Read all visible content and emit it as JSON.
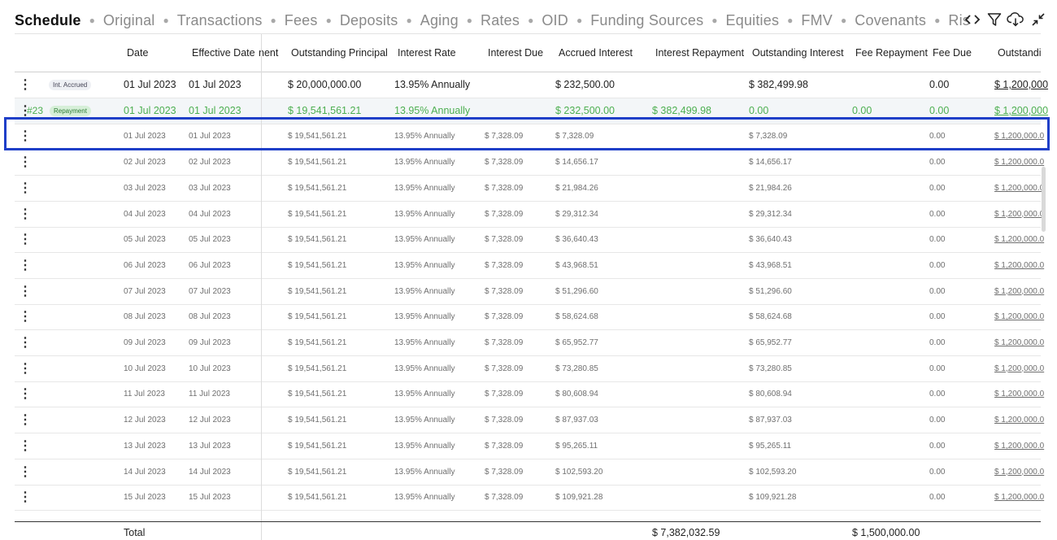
{
  "tabs": [
    "Schedule",
    "Original",
    "Transactions",
    "Fees",
    "Deposits",
    "Aging",
    "Rates",
    "OID",
    "Funding Sources",
    "Equities",
    "FMV",
    "Covenants",
    "Ris"
  ],
  "toolbar": {
    "code_icon": "code-icon",
    "filter_icon": "filter-icon",
    "download_icon": "cloud-download-icon",
    "collapse_icon": "collapse-icon"
  },
  "headers": {
    "date": "Date",
    "effective_date": "Effective Date",
    "repayment_cut": "nent",
    "outstanding_principal": "Outstanding Principal",
    "interest_rate": "Interest Rate",
    "interest_due": "Interest Due",
    "accrued_interest": "Accrued Interest",
    "interest_repayment": "Interest Repayment",
    "outstanding_interest": "Outstanding Interest",
    "fee_repayment": "Fee Repayment",
    "fee_due": "Fee Due",
    "outstanding_fee": "Outstandi"
  },
  "rows": [
    {
      "type": "accrued",
      "badge": "Int. Accrued",
      "id": "",
      "date": "01 Jul 2023",
      "eff": "01 Jul 2023",
      "principal": "$ 20,000,000.00",
      "rate": "13.95% Annually",
      "due": "",
      "accrued": "$ 232,500.00",
      "int_repay": "",
      "out_int": "$ 382,499.98",
      "fee_repay": "",
      "fee_due": "0.00",
      "out_fee": "$ 1,200,000"
    },
    {
      "type": "repayment",
      "badge": "Repayment",
      "id": "#23",
      "date": "01 Jul 2023",
      "eff": "01 Jul 2023",
      "principal": "$ 19,541,561.21",
      "rate": "13.95% Annually",
      "due": "",
      "accrued": "$ 232,500.00",
      "int_repay": "$ 382,499.98",
      "out_int": "0.00",
      "fee_repay": "0.00",
      "fee_due": "0.00",
      "out_fee": "$ 1,200,000"
    },
    {
      "type": "daily",
      "badge": "",
      "id": "",
      "date": "01 Jul 2023",
      "eff": "01 Jul 2023",
      "principal": "$ 19,541,561.21",
      "rate": "13.95% Annually",
      "due": "$ 7,328.09",
      "accrued": "$ 7,328.09",
      "int_repay": "",
      "out_int": "$ 7,328.09",
      "fee_repay": "",
      "fee_due": "0.00",
      "out_fee": "$ 1,200,000.0"
    },
    {
      "type": "daily",
      "badge": "",
      "id": "",
      "date": "02 Jul 2023",
      "eff": "02 Jul 2023",
      "principal": "$ 19,541,561.21",
      "rate": "13.95% Annually",
      "due": "$ 7,328.09",
      "accrued": "$ 14,656.17",
      "int_repay": "",
      "out_int": "$ 14,656.17",
      "fee_repay": "",
      "fee_due": "0.00",
      "out_fee": "$ 1,200,000.0"
    },
    {
      "type": "daily",
      "badge": "",
      "id": "",
      "date": "03 Jul 2023",
      "eff": "03 Jul 2023",
      "principal": "$ 19,541,561.21",
      "rate": "13.95% Annually",
      "due": "$ 7,328.09",
      "accrued": "$ 21,984.26",
      "int_repay": "",
      "out_int": "$ 21,984.26",
      "fee_repay": "",
      "fee_due": "0.00",
      "out_fee": "$ 1,200,000.0"
    },
    {
      "type": "daily",
      "badge": "",
      "id": "",
      "date": "04 Jul 2023",
      "eff": "04 Jul 2023",
      "principal": "$ 19,541,561.21",
      "rate": "13.95% Annually",
      "due": "$ 7,328.09",
      "accrued": "$ 29,312.34",
      "int_repay": "",
      "out_int": "$ 29,312.34",
      "fee_repay": "",
      "fee_due": "0.00",
      "out_fee": "$ 1,200,000.0"
    },
    {
      "type": "daily",
      "badge": "",
      "id": "",
      "date": "05 Jul 2023",
      "eff": "05 Jul 2023",
      "principal": "$ 19,541,561.21",
      "rate": "13.95% Annually",
      "due": "$ 7,328.09",
      "accrued": "$ 36,640.43",
      "int_repay": "",
      "out_int": "$ 36,640.43",
      "fee_repay": "",
      "fee_due": "0.00",
      "out_fee": "$ 1,200,000.0"
    },
    {
      "type": "daily",
      "badge": "",
      "id": "",
      "date": "06 Jul 2023",
      "eff": "06 Jul 2023",
      "principal": "$ 19,541,561.21",
      "rate": "13.95% Annually",
      "due": "$ 7,328.09",
      "accrued": "$ 43,968.51",
      "int_repay": "",
      "out_int": "$ 43,968.51",
      "fee_repay": "",
      "fee_due": "0.00",
      "out_fee": "$ 1,200,000.0"
    },
    {
      "type": "daily",
      "badge": "",
      "id": "",
      "date": "07 Jul 2023",
      "eff": "07 Jul 2023",
      "principal": "$ 19,541,561.21",
      "rate": "13.95% Annually",
      "due": "$ 7,328.09",
      "accrued": "$ 51,296.60",
      "int_repay": "",
      "out_int": "$ 51,296.60",
      "fee_repay": "",
      "fee_due": "0.00",
      "out_fee": "$ 1,200,000.0"
    },
    {
      "type": "daily",
      "badge": "",
      "id": "",
      "date": "08 Jul 2023",
      "eff": "08 Jul 2023",
      "principal": "$ 19,541,561.21",
      "rate": "13.95% Annually",
      "due": "$ 7,328.09",
      "accrued": "$ 58,624.68",
      "int_repay": "",
      "out_int": "$ 58,624.68",
      "fee_repay": "",
      "fee_due": "0.00",
      "out_fee": "$ 1,200,000.0"
    },
    {
      "type": "daily",
      "badge": "",
      "id": "",
      "date": "09 Jul 2023",
      "eff": "09 Jul 2023",
      "principal": "$ 19,541,561.21",
      "rate": "13.95% Annually",
      "due": "$ 7,328.09",
      "accrued": "$ 65,952.77",
      "int_repay": "",
      "out_int": "$ 65,952.77",
      "fee_repay": "",
      "fee_due": "0.00",
      "out_fee": "$ 1,200,000.0"
    },
    {
      "type": "daily",
      "badge": "",
      "id": "",
      "date": "10 Jul 2023",
      "eff": "10 Jul 2023",
      "principal": "$ 19,541,561.21",
      "rate": "13.95% Annually",
      "due": "$ 7,328.09",
      "accrued": "$ 73,280.85",
      "int_repay": "",
      "out_int": "$ 73,280.85",
      "fee_repay": "",
      "fee_due": "0.00",
      "out_fee": "$ 1,200,000.0"
    },
    {
      "type": "daily",
      "badge": "",
      "id": "",
      "date": "11 Jul 2023",
      "eff": "11 Jul 2023",
      "principal": "$ 19,541,561.21",
      "rate": "13.95% Annually",
      "due": "$ 7,328.09",
      "accrued": "$ 80,608.94",
      "int_repay": "",
      "out_int": "$ 80,608.94",
      "fee_repay": "",
      "fee_due": "0.00",
      "out_fee": "$ 1,200,000.0"
    },
    {
      "type": "daily",
      "badge": "",
      "id": "",
      "date": "12 Jul 2023",
      "eff": "12 Jul 2023",
      "principal": "$ 19,541,561.21",
      "rate": "13.95% Annually",
      "due": "$ 7,328.09",
      "accrued": "$ 87,937.03",
      "int_repay": "",
      "out_int": "$ 87,937.03",
      "fee_repay": "",
      "fee_due": "0.00",
      "out_fee": "$ 1,200,000.0"
    },
    {
      "type": "daily",
      "badge": "",
      "id": "",
      "date": "13 Jul 2023",
      "eff": "13 Jul 2023",
      "principal": "$ 19,541,561.21",
      "rate": "13.95% Annually",
      "due": "$ 7,328.09",
      "accrued": "$ 95,265.11",
      "int_repay": "",
      "out_int": "$ 95,265.11",
      "fee_repay": "",
      "fee_due": "0.00",
      "out_fee": "$ 1,200,000.0"
    },
    {
      "type": "daily",
      "badge": "",
      "id": "",
      "date": "14 Jul 2023",
      "eff": "14 Jul 2023",
      "principal": "$ 19,541,561.21",
      "rate": "13.95% Annually",
      "due": "$ 7,328.09",
      "accrued": "$ 102,593.20",
      "int_repay": "",
      "out_int": "$ 102,593.20",
      "fee_repay": "",
      "fee_due": "0.00",
      "out_fee": "$ 1,200,000.0"
    },
    {
      "type": "daily",
      "badge": "",
      "id": "",
      "date": "15 Jul 2023",
      "eff": "15 Jul 2023",
      "principal": "$ 19,541,561.21",
      "rate": "13.95% Annually",
      "due": "$ 7,328.09",
      "accrued": "$ 109,921.28",
      "int_repay": "",
      "out_int": "$ 109,921.28",
      "fee_repay": "",
      "fee_due": "0.00",
      "out_fee": "$ 1,200,000.0"
    }
  ],
  "footer": {
    "label": "Total",
    "interest_repayment_total": "$ 7,382,032.59",
    "fee_repayment_total": "$ 1,500,000.00"
  }
}
